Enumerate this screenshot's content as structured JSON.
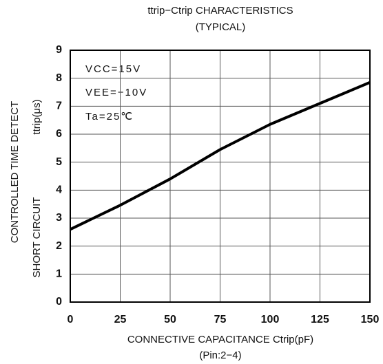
{
  "chart_data": {
    "type": "line",
    "title": [
      "ttrip−Ctrip  CHARACTERISTICS",
      "(TYPICAL)"
    ],
    "x_label": [
      "CONNECTIVE CAPACITANCE   Ctrip(pF)",
      "(Pin:2−4)"
    ],
    "y_label": [
      "CONTROLLED TIME DETECT",
      "SHORT CIRCUIT",
      "ttrip(μs)"
    ],
    "annotations": [
      "VCC=15V",
      "VEE=−10V",
      "Ta=25℃"
    ],
    "x": [
      0,
      25,
      50,
      75,
      100,
      125,
      150
    ],
    "series": [
      {
        "name": null,
        "color": "#000000",
        "values": [
          2.6,
          3.46,
          4.4,
          5.45,
          6.35,
          7.1,
          7.85
        ]
      }
    ],
    "xlim": [
      0,
      150
    ],
    "xticks": [
      0,
      25,
      50,
      75,
      100,
      125,
      150
    ],
    "ylim": [
      0,
      9
    ],
    "yticks": [
      0,
      1,
      2,
      3,
      4,
      5,
      6,
      7,
      8,
      9
    ],
    "grid": true
  }
}
